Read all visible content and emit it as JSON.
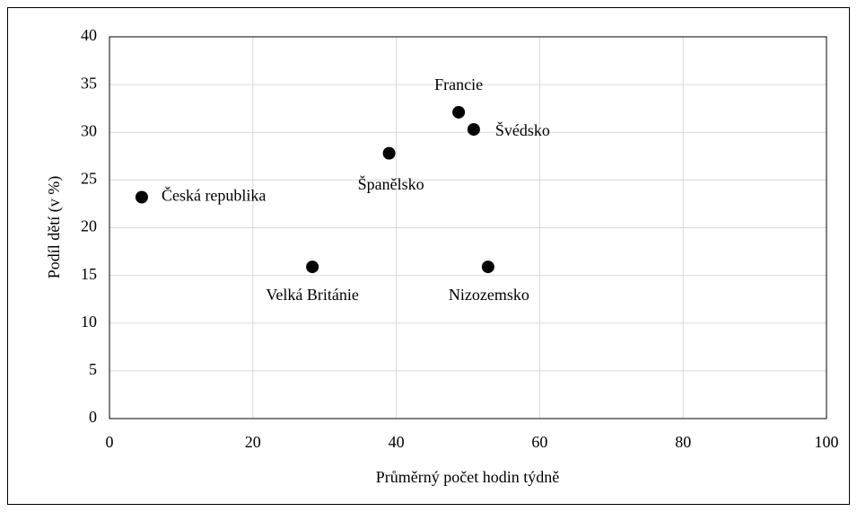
{
  "chart_data": {
    "type": "scatter",
    "x": [
      4.5,
      28.3,
      39,
      48.7,
      50.8,
      52.8
    ],
    "values": [
      23.2,
      15.9,
      27.8,
      32.1,
      30.3,
      15.9
    ],
    "labels": [
      "Česká republika",
      "Velká Británie",
      "Španělsko",
      "Francie",
      "Švédsko",
      "Nizozemsko"
    ],
    "color": "#000000",
    "xlim": [
      0,
      100
    ],
    "xticks": [
      0,
      20,
      40,
      60,
      80,
      100
    ],
    "ylim": [
      0,
      40
    ],
    "yticks": [
      0,
      5,
      10,
      15,
      20,
      25,
      30,
      35,
      40
    ],
    "x_label": "Průměrný počet hodin týdně",
    "y_label": "Podíl dětí (v %)",
    "grid": true
  }
}
